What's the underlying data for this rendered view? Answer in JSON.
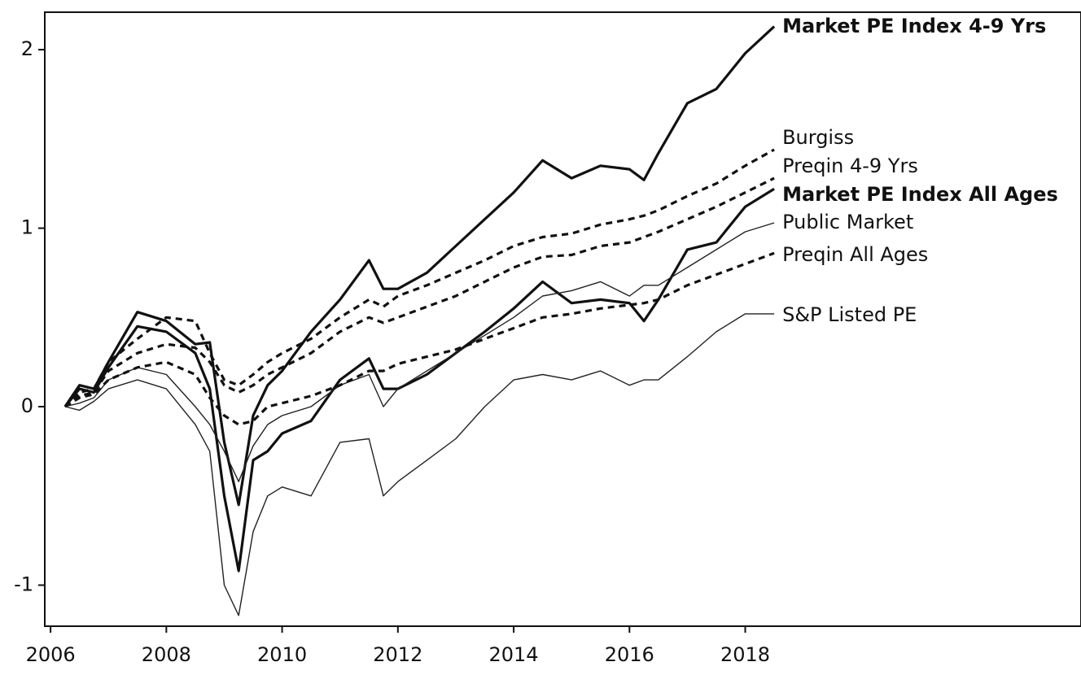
{
  "chart_data": {
    "type": "line",
    "x": [
      2006.25,
      2006.5,
      2006.75,
      2007,
      2007.5,
      2008,
      2008.5,
      2008.75,
      2009,
      2009.25,
      2009.5,
      2009.75,
      2010,
      2010.5,
      2011,
      2011.5,
      2011.75,
      2012,
      2012.5,
      2013,
      2013.5,
      2014,
      2014.5,
      2015,
      2015.5,
      2016,
      2016.25,
      2016.5,
      2017,
      2017.5,
      2018,
      2018.5
    ],
    "series": [
      {
        "name": "Market PE Index 4-9 Yrs",
        "color": "#111111",
        "linewidth": 3.2,
        "style": "solid",
        "values": [
          0,
          0.12,
          0.1,
          0.25,
          0.53,
          0.48,
          0.35,
          0.36,
          -0.2,
          -0.55,
          -0.05,
          0.12,
          0.2,
          0.42,
          0.6,
          0.82,
          0.66,
          0.66,
          0.75,
          0.9,
          1.05,
          1.2,
          1.38,
          1.28,
          1.35,
          1.33,
          1.27,
          1.42,
          1.7,
          1.78,
          1.98,
          2.13
        ]
      },
      {
        "name": "Burgiss",
        "color": "#111111",
        "linewidth": 3.2,
        "style": "dashed",
        "values": [
          0,
          0.08,
          0.1,
          0.25,
          0.38,
          0.5,
          0.48,
          0.3,
          0.15,
          0.12,
          0.18,
          0.25,
          0.3,
          0.38,
          0.5,
          0.6,
          0.56,
          0.62,
          0.68,
          0.75,
          0.82,
          0.9,
          0.95,
          0.97,
          1.02,
          1.05,
          1.07,
          1.1,
          1.18,
          1.25,
          1.35,
          1.44
        ]
      },
      {
        "name": "Preqin 4-9 Yrs",
        "color": "#111111",
        "linewidth": 3.2,
        "style": "dashed",
        "values": [
          0,
          0.06,
          0.08,
          0.2,
          0.3,
          0.35,
          0.33,
          0.25,
          0.12,
          0.08,
          0.12,
          0.18,
          0.22,
          0.3,
          0.42,
          0.5,
          0.47,
          0.5,
          0.56,
          0.62,
          0.7,
          0.78,
          0.84,
          0.85,
          0.9,
          0.92,
          0.95,
          0.98,
          1.05,
          1.12,
          1.2,
          1.28
        ]
      },
      {
        "name": "Market PE Index All Ages",
        "color": "#111111",
        "linewidth": 3.2,
        "style": "solid",
        "values": [
          0,
          0.1,
          0.08,
          0.22,
          0.45,
          0.42,
          0.3,
          0.1,
          -0.5,
          -0.92,
          -0.3,
          -0.25,
          -0.15,
          -0.08,
          0.15,
          0.27,
          0.1,
          0.1,
          0.18,
          0.3,
          0.42,
          0.55,
          0.7,
          0.58,
          0.6,
          0.58,
          0.48,
          0.6,
          0.88,
          0.92,
          1.12,
          1.22
        ]
      },
      {
        "name": "Public Market",
        "color": "#222222",
        "linewidth": 1.4,
        "style": "solid",
        "values": [
          0,
          0.02,
          0.05,
          0.15,
          0.22,
          0.18,
          0.0,
          -0.1,
          -0.25,
          -0.42,
          -0.22,
          -0.1,
          -0.05,
          0.0,
          0.12,
          0.18,
          0.0,
          0.1,
          0.2,
          0.3,
          0.4,
          0.5,
          0.62,
          0.65,
          0.7,
          0.62,
          0.68,
          0.68,
          0.78,
          0.88,
          0.98,
          1.03
        ]
      },
      {
        "name": "Preqin All Ages",
        "color": "#111111",
        "linewidth": 3.2,
        "style": "dashed",
        "values": [
          0,
          0.05,
          0.07,
          0.15,
          0.22,
          0.25,
          0.18,
          0.05,
          -0.05,
          -0.1,
          -0.08,
          0.0,
          0.02,
          0.06,
          0.12,
          0.2,
          0.2,
          0.24,
          0.28,
          0.32,
          0.38,
          0.44,
          0.5,
          0.52,
          0.55,
          0.57,
          0.58,
          0.6,
          0.68,
          0.74,
          0.8,
          0.86
        ]
      },
      {
        "name": "S&P Listed PE",
        "color": "#222222",
        "linewidth": 1.4,
        "style": "solid",
        "values": [
          0,
          -0.02,
          0.03,
          0.1,
          0.15,
          0.1,
          -0.1,
          -0.25,
          -1.0,
          -1.17,
          -0.7,
          -0.5,
          -0.45,
          -0.5,
          -0.2,
          -0.18,
          -0.5,
          -0.42,
          -0.3,
          -0.18,
          0.0,
          0.15,
          0.18,
          0.15,
          0.2,
          0.12,
          0.15,
          0.15,
          0.28,
          0.42,
          0.52,
          0.52
        ]
      }
    ],
    "xlim": [
      2005.9,
      2023.8
    ],
    "ylim": [
      -1.23,
      2.21
    ],
    "xticks": [
      2006,
      2008,
      2010,
      2012,
      2014,
      2016,
      2018
    ],
    "yticks": [
      -1,
      0,
      1,
      2
    ],
    "grid": false
  }
}
